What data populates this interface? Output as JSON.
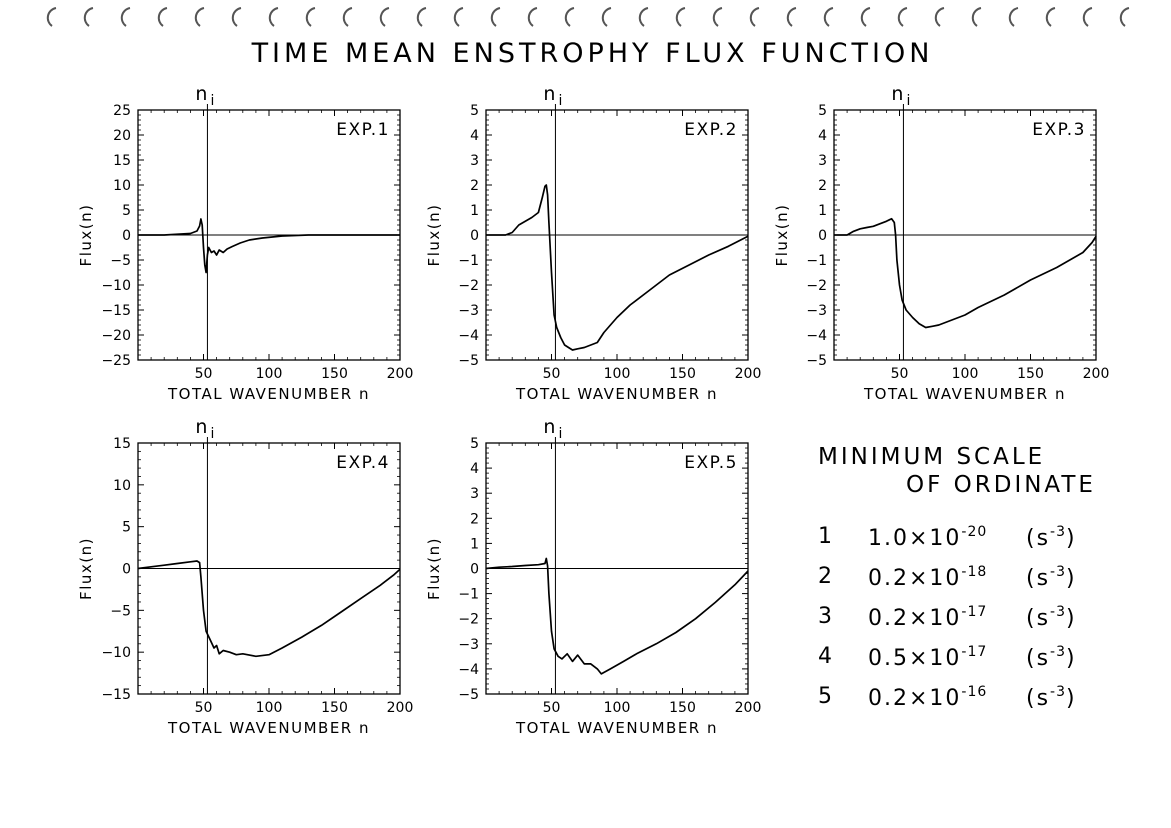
{
  "title": "TIME MEAN ENSTROPHY FLUX FUNCTION",
  "marker_label": "n",
  "marker_sub": "i",
  "chart_data": [
    {
      "type": "line",
      "label": "EXP.1",
      "xlabel": "TOTAL WAVENUMBER n",
      "ylabel": "Flux(n)",
      "xlim": [
        0,
        200
      ],
      "ylim": [
        -25,
        25
      ],
      "xticks": [
        "50",
        "100",
        "150",
        "200"
      ],
      "yticks": [
        "25",
        "20",
        "15",
        "10",
        "5",
        "0",
        "-5",
        "-10",
        "-15",
        "-20",
        "-25"
      ],
      "marker_x": 53,
      "x": [
        0,
        20,
        40,
        45,
        47,
        48,
        49,
        50,
        51,
        52,
        53,
        54,
        56,
        58,
        60,
        62,
        65,
        68,
        72,
        78,
        85,
        95,
        110,
        130,
        200
      ],
      "y": [
        0,
        0,
        0.3,
        0.8,
        1.8,
        3.2,
        2.0,
        -2.5,
        -6.0,
        -7.5,
        -4.0,
        -2.5,
        -3.5,
        -3.2,
        -4.0,
        -3.0,
        -3.5,
        -2.8,
        -2.3,
        -1.6,
        -1.0,
        -0.6,
        -0.2,
        0,
        0
      ]
    },
    {
      "type": "line",
      "label": "EXP.2",
      "xlabel": "TOTAL WAVENUMBER n",
      "ylabel": "Flux(n)",
      "xlim": [
        0,
        200
      ],
      "ylim": [
        -5,
        5
      ],
      "xticks": [
        "50",
        "100",
        "150",
        "200"
      ],
      "yticks": [
        "5",
        "4",
        "3",
        "2",
        "1",
        "0",
        "-1",
        "-2",
        "-3",
        "-4",
        "-5"
      ],
      "marker_x": 53,
      "x": [
        0,
        15,
        20,
        25,
        30,
        35,
        40,
        43,
        45,
        46,
        47,
        48,
        50,
        52,
        54,
        57,
        60,
        63,
        66,
        70,
        75,
        80,
        85,
        90,
        100,
        110,
        125,
        140,
        155,
        170,
        185,
        200
      ],
      "y": [
        0,
        0,
        0.1,
        0.4,
        0.55,
        0.7,
        0.9,
        1.5,
        1.95,
        2.0,
        1.6,
        0.5,
        -1.5,
        -3.2,
        -3.7,
        -4.1,
        -4.4,
        -4.5,
        -4.6,
        -4.55,
        -4.5,
        -4.4,
        -4.3,
        -3.9,
        -3.3,
        -2.8,
        -2.2,
        -1.6,
        -1.2,
        -0.8,
        -0.45,
        -0.05
      ]
    },
    {
      "type": "line",
      "label": "EXP.3",
      "xlabel": "TOTAL WAVENUMBER n",
      "ylabel": "Flux(n)",
      "xlim": [
        0,
        200
      ],
      "ylim": [
        -5,
        5
      ],
      "xticks": [
        "50",
        "100",
        "150",
        "200"
      ],
      "yticks": [
        "5",
        "4",
        "3",
        "2",
        "1",
        "0",
        "-1",
        "-2",
        "-3",
        "-4",
        "-5"
      ],
      "marker_x": 53,
      "x": [
        0,
        10,
        15,
        20,
        25,
        30,
        35,
        40,
        44,
        46,
        47,
        48,
        50,
        52,
        55,
        60,
        65,
        70,
        75,
        80,
        90,
        100,
        110,
        130,
        150,
        170,
        190,
        197,
        200
      ],
      "y": [
        0,
        0,
        0.15,
        0.25,
        0.3,
        0.35,
        0.45,
        0.55,
        0.65,
        0.5,
        0,
        -1.0,
        -2.0,
        -2.6,
        -3.0,
        -3.3,
        -3.55,
        -3.7,
        -3.65,
        -3.6,
        -3.4,
        -3.2,
        -2.9,
        -2.4,
        -1.8,
        -1.3,
        -0.7,
        -0.3,
        -0.05
      ]
    },
    {
      "type": "line",
      "label": "EXP.4",
      "xlabel": "TOTAL WAVENUMBER n",
      "ylabel": "Flux(n)",
      "xlim": [
        0,
        200
      ],
      "ylim": [
        -15,
        15
      ],
      "xticks": [
        "50",
        "100",
        "150",
        "200"
      ],
      "yticks": [
        "15",
        "10",
        "5",
        "0",
        "-5",
        "-10",
        "-15"
      ],
      "marker_x": 53,
      "x": [
        0,
        10,
        20,
        30,
        40,
        45,
        47,
        48,
        50,
        52,
        55,
        58,
        60,
        62,
        65,
        70,
        75,
        80,
        90,
        100,
        110,
        125,
        140,
        155,
        170,
        185,
        195,
        200
      ],
      "y": [
        0,
        0.2,
        0.4,
        0.6,
        0.8,
        0.9,
        0.7,
        -1,
        -5,
        -7.5,
        -8.5,
        -9.5,
        -9.2,
        -10.2,
        -9.8,
        -10.0,
        -10.3,
        -10.2,
        -10.5,
        -10.3,
        -9.5,
        -8.2,
        -6.8,
        -5.2,
        -3.6,
        -2.0,
        -0.8,
        -0.1
      ]
    },
    {
      "type": "line",
      "label": "EXP.5",
      "xlabel": "TOTAL WAVENUMBER n",
      "ylabel": "Flux(n)",
      "xlim": [
        0,
        200
      ],
      "ylim": [
        -5,
        5
      ],
      "xticks": [
        "50",
        "100",
        "150",
        "200"
      ],
      "yticks": [
        "5",
        "4",
        "3",
        "2",
        "1",
        "0",
        "-1",
        "-2",
        "-3",
        "-4",
        "-5"
      ],
      "marker_x": 53,
      "x": [
        0,
        10,
        20,
        30,
        40,
        45,
        46,
        47,
        48,
        50,
        52,
        55,
        58,
        62,
        66,
        70,
        75,
        80,
        85,
        88,
        95,
        105,
        115,
        130,
        145,
        160,
        175,
        190,
        200
      ],
      "y": [
        0,
        0.05,
        0.08,
        0.12,
        0.15,
        0.2,
        0.4,
        0.1,
        -1.0,
        -2.5,
        -3.2,
        -3.5,
        -3.6,
        -3.4,
        -3.7,
        -3.45,
        -3.8,
        -3.8,
        -4.0,
        -4.2,
        -4.0,
        -3.7,
        -3.4,
        -3.0,
        -2.55,
        -2.0,
        -1.35,
        -0.65,
        -0.1
      ]
    }
  ],
  "legend": {
    "title_line1": "MINIMUM SCALE",
    "title_line2": "OF ORDINATE",
    "rows": [
      {
        "exp": "1",
        "mantissa": "1.0×10",
        "exponent": "-20",
        "unit": "(s",
        "unit_exp": "-3",
        "unit_close": ")"
      },
      {
        "exp": "2",
        "mantissa": "0.2×10",
        "exponent": "-18",
        "unit": "(s",
        "unit_exp": "-3",
        "unit_close": ")"
      },
      {
        "exp": "3",
        "mantissa": "0.2×10",
        "exponent": "-17",
        "unit": "(s",
        "unit_exp": "-3",
        "unit_close": ")"
      },
      {
        "exp": "4",
        "mantissa": "0.5×10",
        "exponent": "-17",
        "unit": "(s",
        "unit_exp": "-3",
        "unit_close": ")"
      },
      {
        "exp": "5",
        "mantissa": "0.2×10",
        "exponent": "-16",
        "unit": "(s",
        "unit_exp": "-3",
        "unit_close": ")"
      }
    ]
  }
}
